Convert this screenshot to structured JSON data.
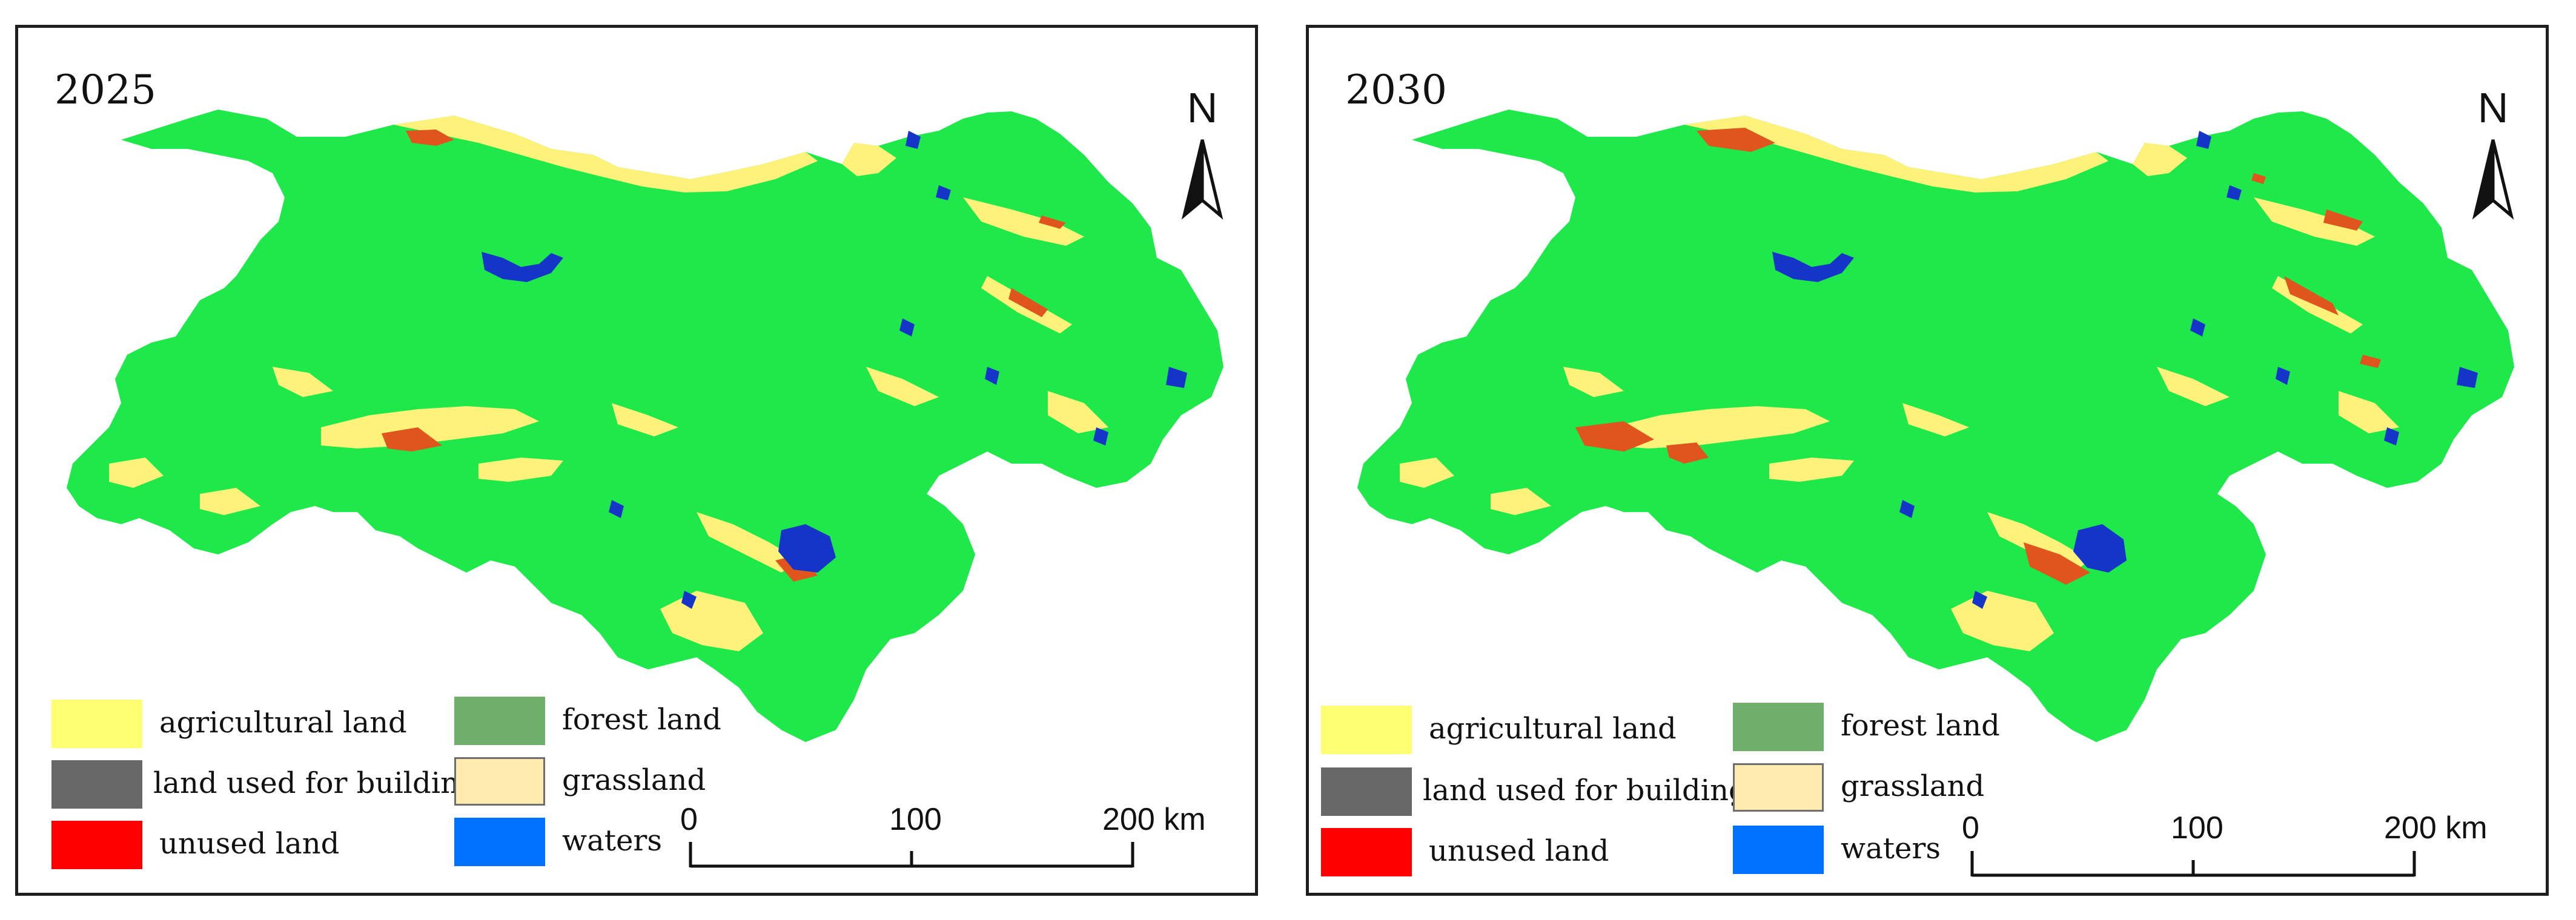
{
  "maps": [
    {
      "year": "2025",
      "north": "N",
      "legend": [
        {
          "label": "agricultural land",
          "color": "#ffff73"
        },
        {
          "label": "land used for building",
          "color": "#686868"
        },
        {
          "label": "unused land",
          "color": "#ff0000"
        },
        {
          "label": "forest land",
          "color": "#6fae6c"
        },
        {
          "label": "grassland",
          "color": "#ffebaf"
        },
        {
          "label": "waters",
          "color": "#0070ff"
        }
      ],
      "scale": {
        "labels": [
          "0",
          "100",
          "200 km"
        ]
      }
    },
    {
      "year": "2030",
      "north": "N",
      "legend": [
        {
          "label": "agricultural land",
          "color": "#ffff73"
        },
        {
          "label": "land used for building",
          "color": "#686868"
        },
        {
          "label": "unused land",
          "color": "#ff0000"
        },
        {
          "label": "forest land",
          "color": "#6fae6c"
        },
        {
          "label": "grassland",
          "color": "#ffebaf"
        },
        {
          "label": "waters",
          "color": "#0070ff"
        }
      ],
      "scale": {
        "labels": [
          "0",
          "100",
          "200 km"
        ]
      }
    }
  ],
  "map_colors": {
    "base_region": "#1ee84a",
    "agricultural": "#fff27a",
    "unused": "#e0541e",
    "waters": "#1535c8"
  }
}
